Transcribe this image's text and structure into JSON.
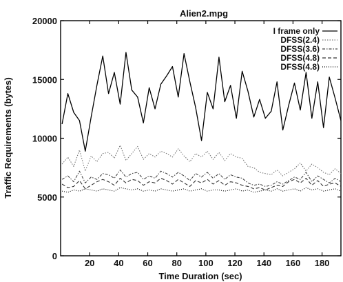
{
  "chart_data": {
    "type": "line",
    "title": "Alien2.mpg",
    "xlabel": "Time Duration (sec)",
    "ylabel": "Traffic Requirements (bytes)",
    "xlim": [
      0,
      193
    ],
    "ylim": [
      0,
      20000
    ],
    "xticks": [
      20,
      40,
      60,
      80,
      100,
      120,
      140,
      160,
      180
    ],
    "yticks": [
      0,
      5000,
      10000,
      15000,
      20000
    ],
    "grid": false,
    "legend_position": "top-right",
    "x": [
      1,
      5,
      9,
      13,
      17,
      21,
      25,
      29,
      33,
      37,
      41,
      45,
      49,
      53,
      57,
      61,
      65,
      69,
      73,
      77,
      81,
      85,
      89,
      93,
      97,
      101,
      105,
      109,
      113,
      117,
      121,
      125,
      129,
      133,
      137,
      141,
      145,
      149,
      153,
      157,
      161,
      165,
      169,
      173,
      177,
      181,
      185,
      189,
      193
    ],
    "series": [
      {
        "name": "I frame only",
        "color": "#000000",
        "dash": "",
        "values": [
          11200,
          13800,
          12200,
          11500,
          8900,
          11800,
          14500,
          17000,
          13800,
          15600,
          12900,
          17300,
          14100,
          13500,
          11300,
          14300,
          12500,
          14600,
          15300,
          16100,
          13500,
          17200,
          14800,
          12600,
          9800,
          13900,
          12500,
          16900,
          13100,
          14500,
          11700,
          15700,
          14000,
          11800,
          13300,
          11700,
          12300,
          14800,
          10700,
          12800,
          14700,
          12400,
          15600,
          11700,
          14800,
          10900,
          15200,
          13400,
          11500
        ]
      },
      {
        "name": "DFSS(2.4)",
        "color": "#777777",
        "dash": "1.5 2",
        "values": [
          7800,
          8400,
          7600,
          9000,
          7200,
          8500,
          8000,
          8700,
          8800,
          8300,
          9400,
          8100,
          8700,
          9300,
          8200,
          8700,
          8400,
          8900,
          8700,
          8400,
          9100,
          8500,
          8000,
          8700,
          8400,
          8900,
          8200,
          8800,
          8100,
          8700,
          8400,
          8300,
          7600,
          7500,
          7100,
          7000,
          6900,
          7300,
          6800,
          7100,
          7400,
          7900,
          7200,
          7800,
          7500,
          7100,
          6900,
          7400,
          7000
        ]
      },
      {
        "name": "DFSS(3.6)",
        "color": "#444444",
        "dash": "4 2 1.5 2",
        "values": [
          6500,
          6800,
          6300,
          7200,
          6200,
          6700,
          6500,
          7000,
          6900,
          6600,
          7300,
          6700,
          7000,
          7100,
          6500,
          6800,
          6600,
          7200,
          7000,
          6700,
          7100,
          6800,
          6400,
          7000,
          6700,
          7100,
          6600,
          7000,
          6500,
          6900,
          6700,
          6600,
          6200,
          6000,
          6100,
          5900,
          6000,
          6300,
          6100,
          6400,
          6700,
          6500,
          7100,
          6300,
          6800,
          6500,
          6200,
          6600,
          6300
        ]
      },
      {
        "name": "DFSS(4.8)",
        "color": "#333333",
        "dash": "5 3",
        "values": [
          6100,
          5800,
          5900,
          6400,
          5700,
          6000,
          6300,
          6500,
          6300,
          6000,
          6600,
          6200,
          6500,
          6400,
          6000,
          6300,
          6200,
          6600,
          6400,
          6100,
          6500,
          6200,
          5900,
          6400,
          6200,
          6500,
          6100,
          6400,
          6000,
          6300,
          6200,
          6000,
          5900,
          5700,
          5800,
          5600,
          5800,
          6000,
          5900,
          6300,
          6500,
          6200,
          6600,
          6000,
          6400,
          5900,
          6100,
          6200,
          5900
        ]
      },
      {
        "name": "DFSS(4.8)",
        "color": "#000000",
        "dash": "1 2",
        "values": [
          5500,
          5400,
          5600,
          5500,
          5700,
          5600,
          5500,
          5700,
          5600,
          5500,
          5800,
          5700,
          5600,
          5700,
          5500,
          5600,
          5500,
          5700,
          5600,
          5500,
          5600,
          5700,
          5500,
          5600,
          5700,
          5500,
          5600,
          5600,
          5500,
          5600,
          5700,
          5500,
          5600,
          5400,
          5500,
          5600,
          5500,
          5700,
          5500,
          5600,
          5700,
          5500,
          5800,
          5600,
          5700,
          5500,
          5600,
          5700,
          5500
        ]
      }
    ]
  }
}
